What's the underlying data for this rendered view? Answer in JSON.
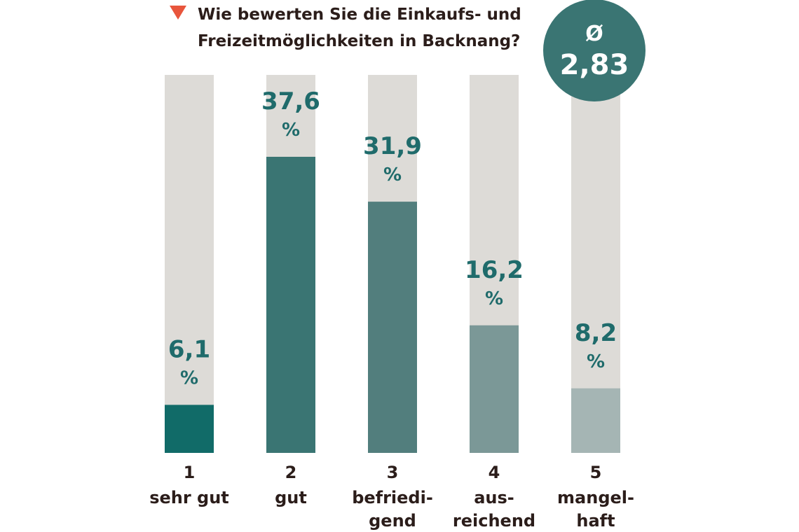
{
  "header": {
    "title_line1": "Wie bewerten Sie die Einkaufs- und",
    "title_line2": "Freizeitmöglichkeiten in Backnang?"
  },
  "average": {
    "symbol": "Ø",
    "value": "2,83"
  },
  "colors": {
    "marker": "#e8553c",
    "track": "#dddbd7",
    "avg_circle": "#3a7573",
    "label_text": "#1f6b6b"
  },
  "chart_data": {
    "type": "bar",
    "title": "Wie bewerten Sie die Einkaufs- und Freizeitmöglichkeiten in Backnang?",
    "unit": "%",
    "ylim": [
      0,
      40
    ],
    "grid": false,
    "categories": [
      {
        "num": "1",
        "label_lines": [
          "sehr gut"
        ]
      },
      {
        "num": "2",
        "label_lines": [
          "gut"
        ]
      },
      {
        "num": "3",
        "label_lines": [
          "befriedi-",
          "gend"
        ]
      },
      {
        "num": "4",
        "label_lines": [
          "aus-",
          "reichend"
        ]
      },
      {
        "num": "5",
        "label_lines": [
          "mangel-",
          "haft"
        ]
      }
    ],
    "values": [
      6.1,
      37.6,
      31.9,
      16.2,
      8.2
    ],
    "value_labels": [
      "6,1",
      "37,6",
      "31,9",
      "16,2",
      "8,2"
    ],
    "bar_colors": [
      "#116b68",
      "#3a7573",
      "#527e7d",
      "#7b9897",
      "#a5b5b4"
    ]
  }
}
